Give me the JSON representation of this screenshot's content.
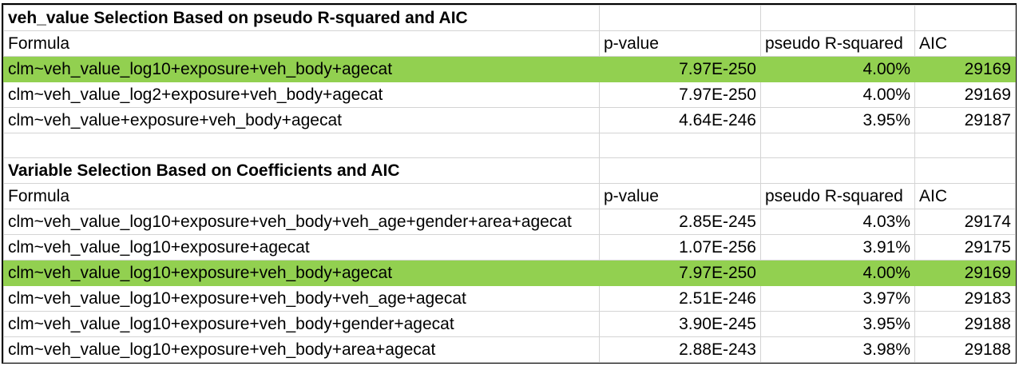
{
  "section1": {
    "title": "veh_value Selection Based on pseudo R-squared and AIC",
    "headers": [
      "Formula",
      "p-value",
      "pseudo R-squared",
      "AIC"
    ],
    "rows": [
      {
        "formula": "clm~veh_value_log10+exposure+veh_body+agecat",
        "p_value": "7.97E-250",
        "pseudo_r2": "4.00%",
        "aic": "29169",
        "highlighted": true
      },
      {
        "formula": "clm~veh_value_log2+exposure+veh_body+agecat",
        "p_value": "7.97E-250",
        "pseudo_r2": "4.00%",
        "aic": "29169",
        "highlighted": false
      },
      {
        "formula": "clm~veh_value+exposure+veh_body+agecat",
        "p_value": "4.64E-246",
        "pseudo_r2": "3.95%",
        "aic": "29187",
        "highlighted": false
      }
    ]
  },
  "section2": {
    "title": "Variable Selection Based on Coefficients and AIC",
    "headers": [
      "Formula",
      "p-value",
      "pseudo R-squared",
      "AIC"
    ],
    "rows": [
      {
        "formula": "clm~veh_value_log10+exposure+veh_body+veh_age+gender+area+agecat",
        "p_value": "2.85E-245",
        "pseudo_r2": "4.03%",
        "aic": "29174",
        "highlighted": false
      },
      {
        "formula": "clm~veh_value_log10+exposure+agecat",
        "p_value": "1.07E-256",
        "pseudo_r2": "3.91%",
        "aic": "29175",
        "highlighted": false
      },
      {
        "formula": "clm~veh_value_log10+exposure+veh_body+agecat",
        "p_value": "7.97E-250",
        "pseudo_r2": "4.00%",
        "aic": "29169",
        "highlighted": true
      },
      {
        "formula": "clm~veh_value_log10+exposure+veh_body+veh_age+agecat",
        "p_value": "2.51E-246",
        "pseudo_r2": "3.97%",
        "aic": "29183",
        "highlighted": false
      },
      {
        "formula": "clm~veh_value_log10+exposure+veh_body+gender+agecat",
        "p_value": "3.90E-245",
        "pseudo_r2": "3.95%",
        "aic": "29188",
        "highlighted": false
      },
      {
        "formula": "clm~veh_value_log10+exposure+veh_body+area+agecat",
        "p_value": "2.88E-243",
        "pseudo_r2": "3.98%",
        "aic": "29188",
        "highlighted": false
      }
    ]
  },
  "colors": {
    "highlight": "#92d050",
    "gridline": "#d4d4d4",
    "border": "#000000"
  }
}
